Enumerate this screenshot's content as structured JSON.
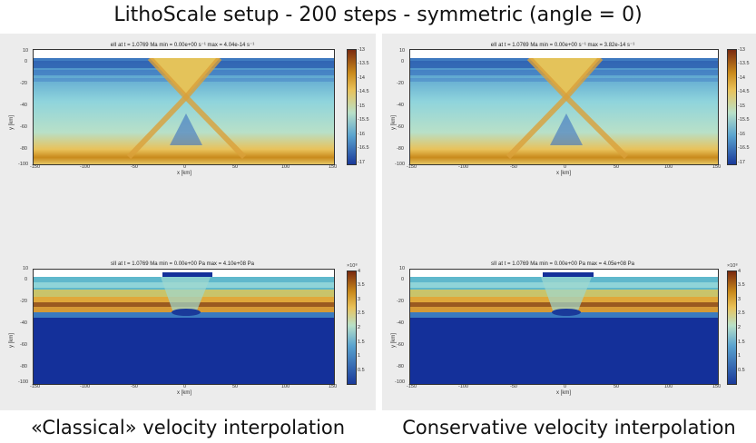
{
  "title": "LithoScale setup - 200 steps - symmetric (angle = 0)",
  "captions": {
    "left": "«Classical» velocity interpolation",
    "right": "Conservative velocity interpolation"
  },
  "axes": {
    "xlabel": "x [km]",
    "ylabel": "y [km]",
    "x_ticks": [
      "-150",
      "-100",
      "-50",
      "0",
      "50",
      "100",
      "150"
    ],
    "y_ticks": [
      "10",
      "0",
      "-10",
      "-20",
      "-30",
      "-40",
      "-50",
      "-60",
      "-70",
      "-80",
      "-90",
      "-100"
    ]
  },
  "plots": {
    "top_left": {
      "title": "eII at t = 1.0769 Ma  min = 0.00e+00 s⁻¹ max = 4.04e-14 s⁻¹",
      "colorbar_ticks": [
        "-13",
        "-13.5",
        "-14",
        "-14.5",
        "-15",
        "-15.5",
        "-16",
        "-16.5",
        "-17"
      ],
      "colorbar_exponent": ""
    },
    "top_right": {
      "title": "eII at t = 1.0769 Ma  min = 0.00e+00 s⁻¹ max = 3.82e-14 s⁻¹",
      "colorbar_ticks": [
        "-13",
        "-13.5",
        "-14",
        "-14.5",
        "-15",
        "-15.5",
        "-16",
        "-16.5",
        "-17"
      ],
      "colorbar_exponent": ""
    },
    "bottom_left": {
      "title": "sII at t = 1.0769 Ma  min = 0.00e+00 Pa max = 4.10e+08 Pa",
      "colorbar_ticks": [
        "4",
        "3.5",
        "3",
        "2.5",
        "2",
        "1.5",
        "1",
        "0.5"
      ],
      "colorbar_exponent": "×10⁸"
    },
    "bottom_right": {
      "title": "sII at t = 1.0769 Ma  min = 0.00e+00 Pa max = 4.05e+08 Pa",
      "colorbar_ticks": [
        "4",
        "3.5",
        "3",
        "2.5",
        "2",
        "1.5",
        "1",
        "0.5"
      ],
      "colorbar_exponent": "×10⁸"
    }
  },
  "colors": {
    "low": "#1a3a9a",
    "mid": "#7fd0d8",
    "high": "#c98a1c",
    "max": "#7a2a10"
  }
}
